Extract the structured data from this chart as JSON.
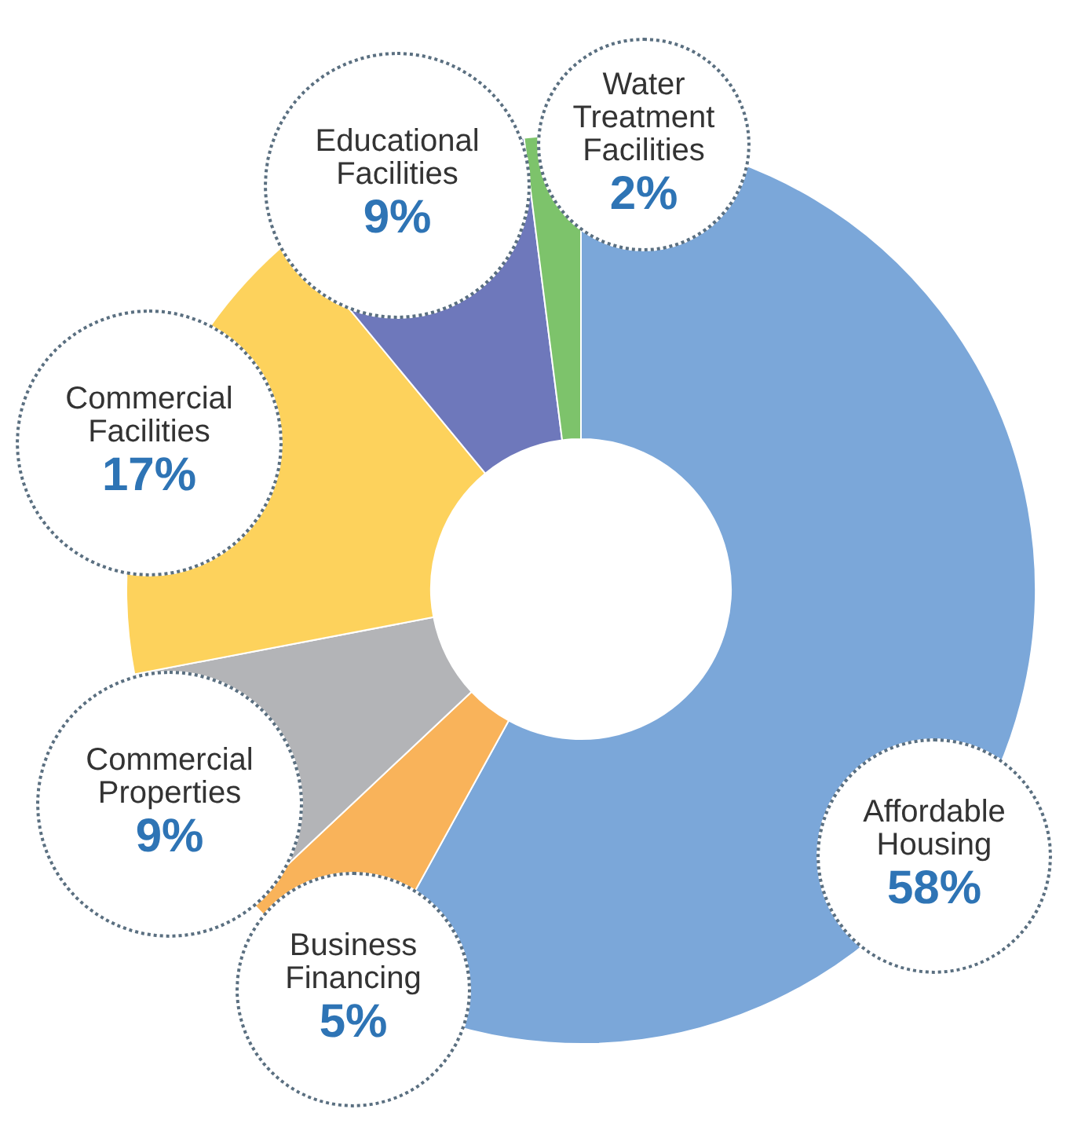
{
  "chart_data": {
    "type": "donut",
    "categories": [
      "Affordable Housing",
      "Business Financing",
      "Commercial Properties",
      "Commercial Facilities",
      "Educational Facilities",
      "Water Treatment Facilities"
    ],
    "values": [
      58,
      5,
      9,
      17,
      9,
      2
    ],
    "colors": [
      "#7ba7d9",
      "#f9b35a",
      "#b3b4b7",
      "#fdd25c",
      "#6e78bb",
      "#7dc36b"
    ],
    "value_labels": [
      "58%",
      "5%",
      "9%",
      "17%",
      "9%",
      "2%"
    ],
    "legend": false
  }
}
